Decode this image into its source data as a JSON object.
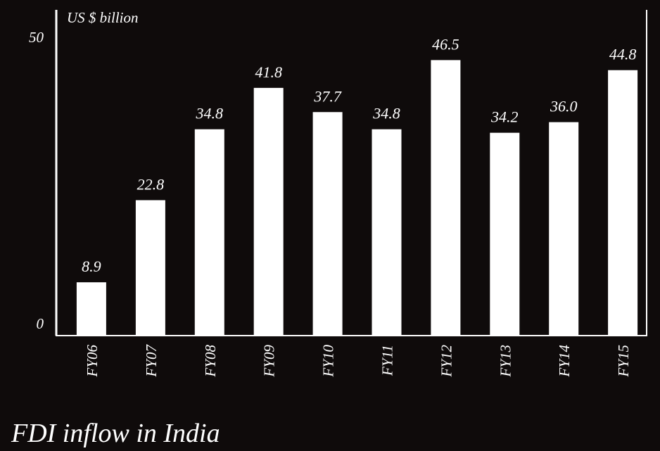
{
  "chart_data": {
    "type": "bar",
    "title": "FDI inflow in India",
    "unit_label": "US $ billion",
    "xlabel": "",
    "ylabel": "",
    "categories": [
      "FY06",
      "FY07",
      "FY08",
      "FY09",
      "FY10",
      "FY11",
      "FY12",
      "FY13",
      "FY14",
      "FY15"
    ],
    "values": [
      8.9,
      22.8,
      34.8,
      41.8,
      37.7,
      34.8,
      46.5,
      34.2,
      36.0,
      44.8
    ],
    "value_labels": [
      "8.9",
      "22.8",
      "34.8",
      "41.8",
      "37.7",
      "34.8",
      "46.5",
      "34.2",
      "36.0",
      "44.8"
    ],
    "yticks": [
      "0",
      "50"
    ],
    "ylim": [
      0,
      50
    ],
    "grid": false,
    "legend": "none",
    "colors": {
      "background": "#0f0b0b",
      "bar": "#ffffff",
      "text": "#ffffff",
      "axis": "#ffffff"
    }
  }
}
